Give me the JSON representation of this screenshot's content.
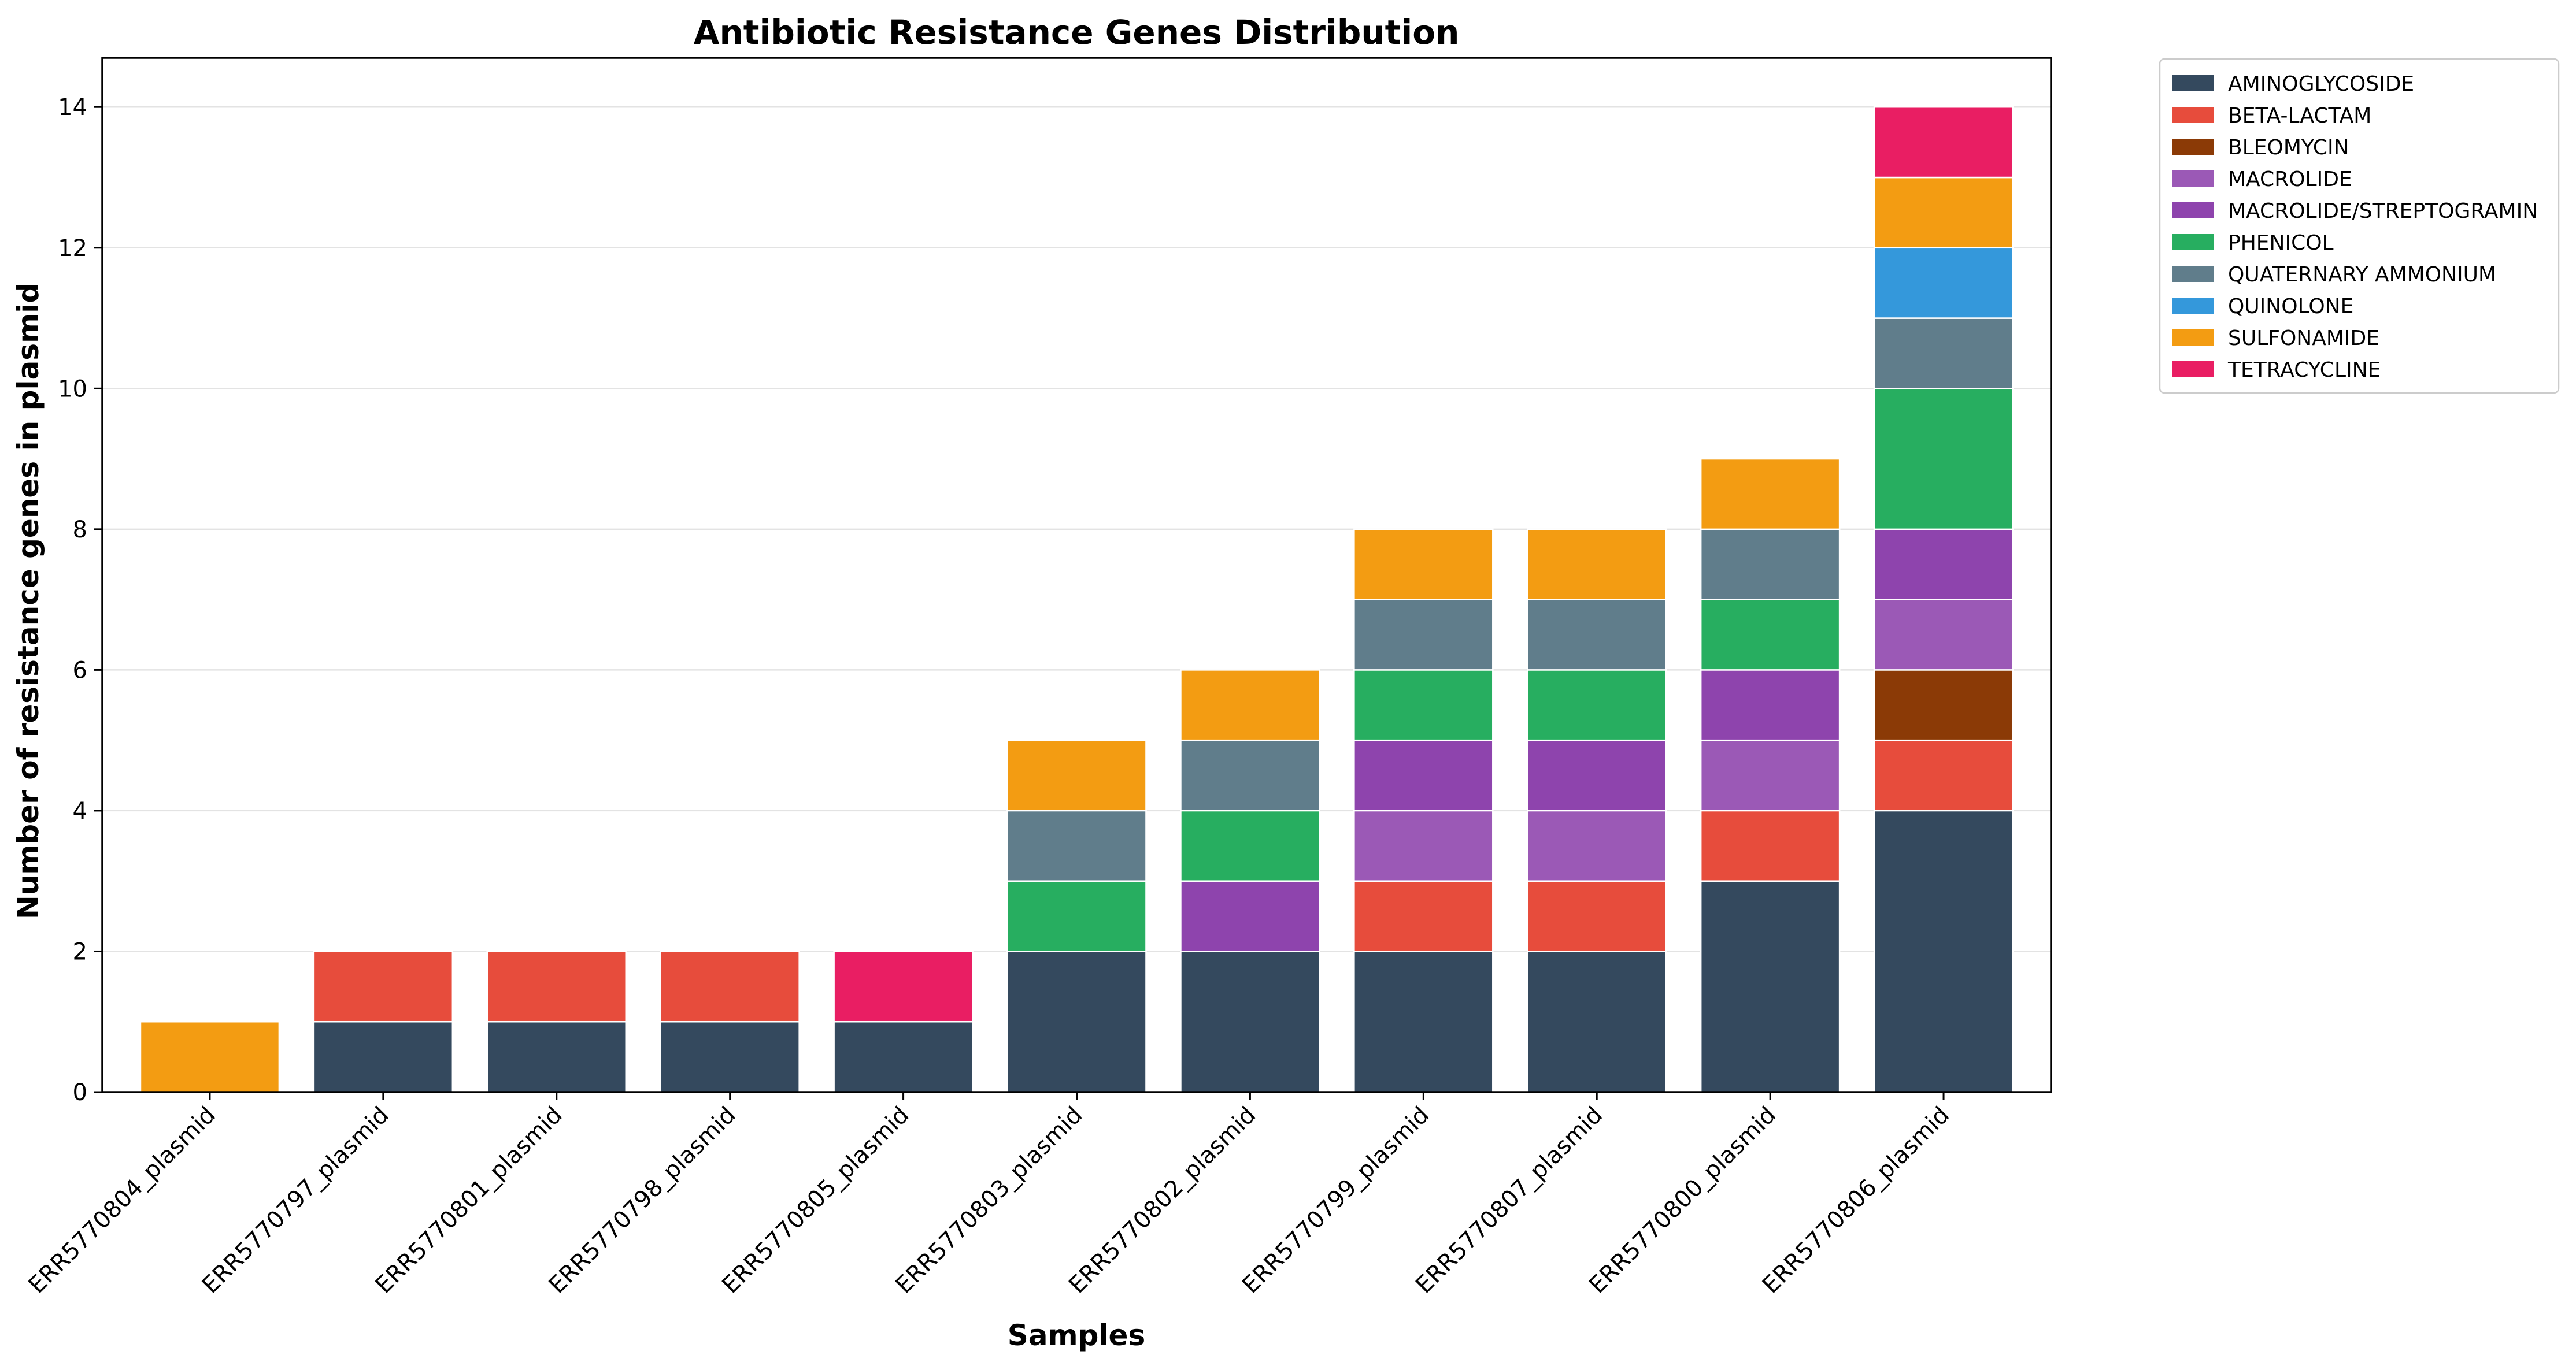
{
  "chart_data": {
    "type": "bar",
    "stacked": true,
    "title": "Antibiotic Resistance Genes Distribution",
    "xlabel": "Samples",
    "ylabel": "Number of resistance genes in plasmid",
    "ylim": [
      0,
      14.7
    ],
    "yticks": [
      0,
      2,
      4,
      6,
      8,
      10,
      12,
      14
    ],
    "grid": "horizontal",
    "legend_position": "outside-top-right",
    "categories": [
      "ERR5770804_plasmid",
      "ERR5770797_plasmid",
      "ERR5770801_plasmid",
      "ERR5770798_plasmid",
      "ERR5770805_plasmid",
      "ERR5770803_plasmid",
      "ERR5770802_plasmid",
      "ERR5770799_plasmid",
      "ERR5770807_plasmid",
      "ERR5770800_plasmid",
      "ERR5770806_plasmid"
    ],
    "series": [
      {
        "name": "AMINOGLYCOSIDE",
        "color": "#34495e",
        "values": [
          0,
          1,
          1,
          1,
          1,
          2,
          2,
          2,
          2,
          3,
          4
        ]
      },
      {
        "name": "BETA-LACTAM",
        "color": "#e74c3c",
        "values": [
          0,
          1,
          1,
          1,
          0,
          0,
          0,
          1,
          1,
          1,
          1
        ]
      },
      {
        "name": "BLEOMYCIN",
        "color": "#8b3a06",
        "values": [
          0,
          0,
          0,
          0,
          0,
          0,
          0,
          0,
          0,
          0,
          1
        ]
      },
      {
        "name": "MACROLIDE",
        "color": "#9b59b6",
        "values": [
          0,
          0,
          0,
          0,
          0,
          0,
          0,
          1,
          1,
          1,
          1
        ]
      },
      {
        "name": "MACROLIDE/STREPTOGRAMIN",
        "color": "#8e44ad",
        "values": [
          0,
          0,
          0,
          0,
          0,
          0,
          1,
          1,
          1,
          1,
          1
        ]
      },
      {
        "name": "PHENICOL",
        "color": "#27ae60",
        "values": [
          0,
          0,
          0,
          0,
          0,
          1,
          1,
          1,
          1,
          1,
          2
        ]
      },
      {
        "name": "QUATERNARY AMMONIUM",
        "color": "#607d8b",
        "values": [
          0,
          0,
          0,
          0,
          0,
          1,
          1,
          1,
          1,
          1,
          1
        ]
      },
      {
        "name": "QUINOLONE",
        "color": "#3498db",
        "values": [
          0,
          0,
          0,
          0,
          0,
          0,
          0,
          0,
          0,
          0,
          1
        ]
      },
      {
        "name": "SULFONAMIDE",
        "color": "#f39c12",
        "values": [
          1,
          0,
          0,
          0,
          0,
          1,
          1,
          1,
          1,
          1,
          1
        ]
      },
      {
        "name": "TETRACYCLINE",
        "color": "#e91e63",
        "values": [
          0,
          0,
          0,
          0,
          1,
          0,
          0,
          0,
          0,
          0,
          1
        ]
      }
    ]
  }
}
